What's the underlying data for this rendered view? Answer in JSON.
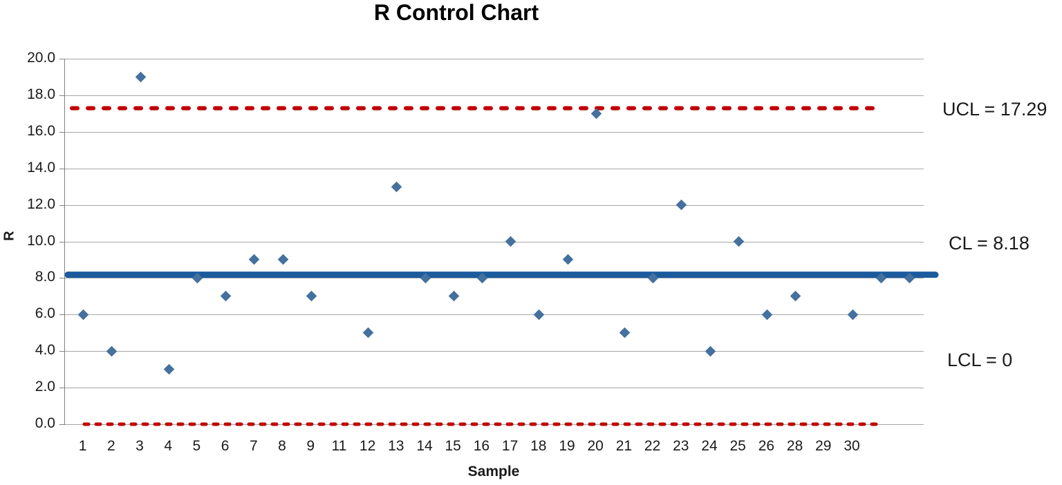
{
  "chart_data": {
    "type": "scatter",
    "title": "R Control Chart",
    "xlabel": "Sample",
    "ylabel": "R",
    "ylim": [
      0,
      20
    ],
    "ytick_labels": [
      "0.0",
      "2.0",
      "4.0",
      "6.0",
      "8.0",
      "10.0",
      "12.0",
      "14.0",
      "16.0",
      "18.0",
      "20.0"
    ],
    "categories": [
      "1",
      "2",
      "3",
      "4",
      "5",
      "6",
      "7",
      "8",
      "9",
      "11",
      "12",
      "13",
      "14",
      "15",
      "16",
      "17",
      "18",
      "19",
      "20",
      "21",
      "22",
      "23",
      "24",
      "25",
      "26",
      "28",
      "29",
      "30",
      "",
      ""
    ],
    "values": [
      6,
      4,
      19,
      3,
      8,
      7,
      9,
      9,
      7,
      null,
      5,
      13,
      8,
      7,
      8,
      10,
      6,
      9,
      17,
      5,
      8,
      12,
      4,
      10,
      6,
      7,
      null,
      6,
      8,
      8
    ],
    "series_name": "R",
    "marker_icon": "diamond-marker",
    "grid": true,
    "legend": "none",
    "control_lines": {
      "ucl": {
        "value": 17.29,
        "label": "UCL = 17.29",
        "style": "dashed"
      },
      "cl": {
        "value": 8.18,
        "label": "CL = 8.18",
        "style": "solid"
      },
      "lcl": {
        "value": 0,
        "label": "LCL = 0",
        "style": "dashed"
      }
    },
    "colors": {
      "marker": "#44719E",
      "cl_line": "#1B5A9D",
      "control_red": "#C00000",
      "gridline": "#A6A6A6",
      "axis": "#808080",
      "text": "#1A1A1A"
    }
  }
}
